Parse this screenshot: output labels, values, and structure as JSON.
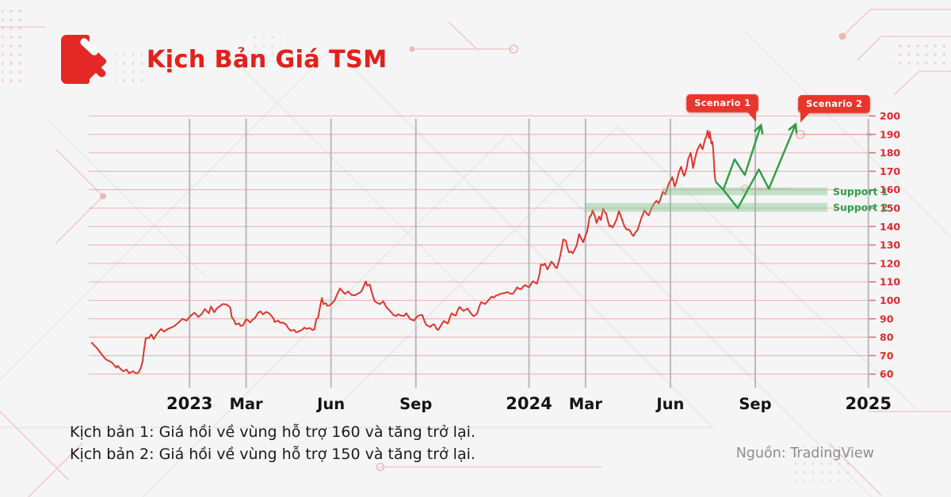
{
  "header": {
    "title": "Kịch Bản Giá TSM"
  },
  "footer": {
    "line1": "Kịch bản 1: Giá hồi về vùng hỗ trợ 160 và tăng trở lại.",
    "line2": "Kịch bản 2: Giá hồi về vùng hỗ trợ 150 và tăng trở lại.",
    "source": "Nguồn: TradingView"
  },
  "colors": {
    "accent_red": "#e2211c",
    "price_line": "#e0352e",
    "scenario_green": "#2f9e43",
    "support_label_green": "#2f9e4a",
    "support_band_green": "#7cc487",
    "grid_red": "#e25a52",
    "grid_gray": "#b5b3b3",
    "y_label_red": "#e0292b",
    "x_label_dark": "#141414",
    "badge_red": "#e8362b"
  },
  "chart_data": {
    "type": "line",
    "title": "Kịch Bản Giá TSM",
    "xlabel": "",
    "ylabel": "",
    "x_axis": {
      "unit": "months_since_jan_2023",
      "ticks": [
        {
          "label": "2023",
          "m": 0,
          "kind": "year"
        },
        {
          "label": "Mar",
          "m": 2,
          "kind": "month"
        },
        {
          "label": "Jun",
          "m": 5,
          "kind": "month"
        },
        {
          "label": "Sep",
          "m": 8,
          "kind": "month"
        },
        {
          "label": "2024",
          "m": 12,
          "kind": "year"
        },
        {
          "label": "Mar",
          "m": 14,
          "kind": "month"
        },
        {
          "label": "Jun",
          "m": 17,
          "kind": "month"
        },
        {
          "label": "Sep",
          "m": 20,
          "kind": "month"
        },
        {
          "label": "2025",
          "m": 24,
          "kind": "year"
        }
      ]
    },
    "y_axis": {
      "min": 60,
      "max": 200,
      "step": 10
    },
    "series": [
      {
        "name": "TSM price",
        "color": "#e0352e",
        "width": 2,
        "arrow": false,
        "points": [
          [
            -3.46,
            77
          ],
          [
            -3.27,
            74
          ],
          [
            -3.1,
            70.5
          ],
          [
            -2.96,
            68
          ],
          [
            -2.76,
            66.5
          ],
          [
            -2.59,
            63.5
          ],
          [
            -2.54,
            64.5
          ],
          [
            -2.42,
            62.5
          ],
          [
            -2.34,
            61.5
          ],
          [
            -2.23,
            62.5
          ],
          [
            -2.14,
            60.5
          ],
          [
            -2.0,
            61.5
          ],
          [
            -1.89,
            60.3
          ],
          [
            -1.8,
            61
          ],
          [
            -1.72,
            63.5
          ],
          [
            -1.66,
            67
          ],
          [
            -1.61,
            73
          ],
          [
            -1.55,
            79.5
          ],
          [
            -1.44,
            79.6
          ],
          [
            -1.35,
            81.5
          ],
          [
            -1.27,
            79
          ],
          [
            -1.15,
            82
          ],
          [
            -1.01,
            84.5
          ],
          [
            -0.9,
            83
          ],
          [
            -0.79,
            84.3
          ],
          [
            -0.68,
            85
          ],
          [
            -0.54,
            86
          ],
          [
            -0.39,
            88
          ],
          [
            -0.25,
            90
          ],
          [
            -0.11,
            89
          ],
          [
            0.03,
            91.5
          ],
          [
            0.17,
            93.3
          ],
          [
            0.31,
            91
          ],
          [
            0.42,
            92.5
          ],
          [
            0.54,
            95.3
          ],
          [
            0.68,
            93
          ],
          [
            0.76,
            96.7
          ],
          [
            0.87,
            93.5
          ],
          [
            0.96,
            95.6
          ],
          [
            1.13,
            97.5
          ],
          [
            1.18,
            98
          ],
          [
            1.32,
            97.7
          ],
          [
            1.44,
            96
          ],
          [
            1.49,
            91
          ],
          [
            1.58,
            89
          ],
          [
            1.63,
            86.9
          ],
          [
            1.75,
            87.5
          ],
          [
            1.8,
            86.1
          ],
          [
            1.89,
            86.5
          ],
          [
            2.0,
            89.7
          ],
          [
            2.08,
            89
          ],
          [
            2.14,
            88
          ],
          [
            2.23,
            89.5
          ],
          [
            2.31,
            90.3
          ],
          [
            2.42,
            93.2
          ],
          [
            2.51,
            94
          ],
          [
            2.59,
            92.4
          ],
          [
            2.7,
            93.7
          ],
          [
            2.79,
            93.2
          ],
          [
            2.87,
            92
          ],
          [
            2.96,
            90.3
          ],
          [
            3.01,
            88.2
          ],
          [
            3.13,
            89
          ],
          [
            3.21,
            87.8
          ],
          [
            3.3,
            88
          ],
          [
            3.41,
            86.9
          ],
          [
            3.49,
            84.8
          ],
          [
            3.58,
            83.5
          ],
          [
            3.69,
            84
          ],
          [
            3.77,
            82.6
          ],
          [
            3.86,
            83.2
          ],
          [
            3.97,
            83.9
          ],
          [
            4.06,
            85.2
          ],
          [
            4.14,
            84.5
          ],
          [
            4.25,
            85
          ],
          [
            4.34,
            83.9
          ],
          [
            4.42,
            84.3
          ],
          [
            4.48,
            89.9
          ],
          [
            4.54,
            90.3
          ],
          [
            4.62,
            97
          ],
          [
            4.68,
            101.3
          ],
          [
            4.73,
            98
          ],
          [
            4.82,
            98.5
          ],
          [
            4.87,
            97
          ],
          [
            4.96,
            97.3
          ],
          [
            5.04,
            98.5
          ],
          [
            5.13,
            100
          ],
          [
            5.21,
            103
          ],
          [
            5.32,
            106.5
          ],
          [
            5.41,
            104.8
          ],
          [
            5.49,
            103.5
          ],
          [
            5.61,
            104.8
          ],
          [
            5.72,
            103
          ],
          [
            5.83,
            102.7
          ],
          [
            5.94,
            103.5
          ],
          [
            6.06,
            104.5
          ],
          [
            6.14,
            107
          ],
          [
            6.23,
            110.3
          ],
          [
            6.28,
            108
          ],
          [
            6.37,
            108.6
          ],
          [
            6.45,
            104
          ],
          [
            6.54,
            99.6
          ],
          [
            6.65,
            98.5
          ],
          [
            6.73,
            98
          ],
          [
            6.85,
            99.5
          ],
          [
            6.93,
            97
          ],
          [
            7.01,
            95.4
          ],
          [
            7.13,
            93.5
          ],
          [
            7.21,
            92
          ],
          [
            7.3,
            91.5
          ],
          [
            7.38,
            92.5
          ],
          [
            7.46,
            91.8
          ],
          [
            7.58,
            91.5
          ],
          [
            7.66,
            93
          ],
          [
            7.75,
            91
          ],
          [
            7.8,
            89.8
          ],
          [
            7.89,
            89.3
          ],
          [
            7.94,
            89
          ],
          [
            8.03,
            91
          ],
          [
            8.08,
            91.5
          ],
          [
            8.17,
            92
          ],
          [
            8.23,
            92
          ],
          [
            8.31,
            88.5
          ],
          [
            8.37,
            86.7
          ],
          [
            8.45,
            86
          ],
          [
            8.51,
            85.6
          ],
          [
            8.59,
            86.8
          ],
          [
            8.65,
            87
          ],
          [
            8.73,
            84.6
          ],
          [
            8.79,
            83.9
          ],
          [
            8.87,
            86
          ],
          [
            8.99,
            88.8
          ],
          [
            9.07,
            88
          ],
          [
            9.13,
            87.4
          ],
          [
            9.21,
            91
          ],
          [
            9.27,
            93
          ],
          [
            9.35,
            92
          ],
          [
            9.41,
            91.7
          ],
          [
            9.49,
            95
          ],
          [
            9.55,
            96.4
          ],
          [
            9.63,
            95
          ],
          [
            9.69,
            94.3
          ],
          [
            9.77,
            95
          ],
          [
            9.83,
            95.6
          ],
          [
            9.92,
            93.5
          ],
          [
            10.03,
            91.4
          ],
          [
            10.11,
            92
          ],
          [
            10.17,
            93
          ],
          [
            10.25,
            97
          ],
          [
            10.31,
            99
          ],
          [
            10.39,
            98.5
          ],
          [
            10.45,
            98
          ],
          [
            10.56,
            100
          ],
          [
            10.68,
            102
          ],
          [
            10.76,
            101.5
          ],
          [
            10.82,
            102.5
          ],
          [
            10.9,
            102.8
          ],
          [
            10.96,
            103.3
          ],
          [
            11.07,
            103.8
          ],
          [
            11.15,
            104
          ],
          [
            11.24,
            104.5
          ],
          [
            11.35,
            103.5
          ],
          [
            11.44,
            103.7
          ],
          [
            11.52,
            105.5
          ],
          [
            11.58,
            107
          ],
          [
            11.66,
            106.2
          ],
          [
            11.72,
            106
          ],
          [
            11.8,
            107.5
          ],
          [
            11.86,
            108.3
          ],
          [
            11.94,
            107.5
          ],
          [
            12.0,
            107
          ],
          [
            12.08,
            109
          ],
          [
            12.14,
            110.4
          ],
          [
            12.23,
            109.5
          ],
          [
            12.28,
            109
          ],
          [
            12.37,
            114
          ],
          [
            12.42,
            119.5
          ],
          [
            12.51,
            119
          ],
          [
            12.56,
            120
          ],
          [
            12.65,
            116.8
          ],
          [
            12.7,
            118
          ],
          [
            12.79,
            121
          ],
          [
            12.87,
            119.7
          ],
          [
            12.93,
            118
          ],
          [
            12.99,
            117.5
          ],
          [
            13.07,
            122
          ],
          [
            13.13,
            126
          ],
          [
            13.21,
            133
          ],
          [
            13.3,
            132.4
          ],
          [
            13.35,
            129
          ],
          [
            13.41,
            126
          ],
          [
            13.49,
            126.5
          ],
          [
            13.55,
            125.5
          ],
          [
            13.63,
            128
          ],
          [
            13.69,
            130
          ],
          [
            13.77,
            136
          ],
          [
            13.83,
            134
          ],
          [
            13.92,
            131.5
          ],
          [
            13.97,
            134
          ],
          [
            14.06,
            137.5
          ],
          [
            14.14,
            145.3
          ],
          [
            14.2,
            146
          ],
          [
            14.25,
            148.9
          ],
          [
            14.34,
            145
          ],
          [
            14.39,
            142
          ],
          [
            14.48,
            145.5
          ],
          [
            14.54,
            143.5
          ],
          [
            14.62,
            149.7
          ],
          [
            14.68,
            148
          ],
          [
            14.73,
            147
          ],
          [
            14.79,
            143
          ],
          [
            14.85,
            140
          ],
          [
            14.9,
            140.5
          ],
          [
            14.96,
            139.5
          ],
          [
            15.04,
            142
          ],
          [
            15.1,
            144
          ],
          [
            15.18,
            148.5
          ],
          [
            15.24,
            146
          ],
          [
            15.32,
            142.5
          ],
          [
            15.38,
            140
          ],
          [
            15.46,
            138.3
          ],
          [
            15.52,
            138.5
          ],
          [
            15.58,
            137.5
          ],
          [
            15.63,
            136
          ],
          [
            15.69,
            134.9
          ],
          [
            15.75,
            136.5
          ],
          [
            15.83,
            138
          ],
          [
            15.92,
            142
          ],
          [
            15.97,
            144.7
          ],
          [
            16.03,
            146.5
          ],
          [
            16.08,
            148.9
          ],
          [
            16.17,
            147
          ],
          [
            16.23,
            146
          ],
          [
            16.31,
            149
          ],
          [
            16.37,
            151
          ],
          [
            16.45,
            153
          ],
          [
            16.51,
            154
          ],
          [
            16.59,
            152.5
          ],
          [
            16.65,
            155
          ],
          [
            16.73,
            158.9
          ],
          [
            16.82,
            157.5
          ],
          [
            16.87,
            160
          ],
          [
            16.96,
            163.9
          ],
          [
            17.01,
            165
          ],
          [
            17.07,
            166.8
          ],
          [
            17.15,
            161.7
          ],
          [
            17.21,
            164
          ],
          [
            17.3,
            169.5
          ],
          [
            17.38,
            172.5
          ],
          [
            17.44,
            169
          ],
          [
            17.49,
            167.5
          ],
          [
            17.58,
            172
          ],
          [
            17.63,
            176.8
          ],
          [
            17.72,
            180
          ],
          [
            17.77,
            175
          ],
          [
            17.8,
            171.7
          ],
          [
            17.86,
            176
          ],
          [
            17.94,
            181.2
          ],
          [
            18.0,
            183
          ],
          [
            18.06,
            184.7
          ],
          [
            18.11,
            182.5
          ],
          [
            18.14,
            182
          ],
          [
            18.23,
            187.6
          ],
          [
            18.28,
            189
          ],
          [
            18.31,
            192
          ],
          [
            18.34,
            190
          ],
          [
            18.37,
            188
          ],
          [
            18.39,
            191.5
          ],
          [
            18.45,
            185
          ],
          [
            18.48,
            186
          ],
          [
            18.51,
            183
          ],
          [
            18.54,
            175
          ],
          [
            18.56,
            169
          ],
          [
            18.59,
            165
          ],
          [
            18.62,
            164
          ]
        ]
      },
      {
        "name": "Scenario 1 path",
        "color": "#2f9e43",
        "width": 2.4,
        "arrow": true,
        "points": [
          [
            18.62,
            164
          ],
          [
            18.87,
            160
          ],
          [
            19.27,
            176.5
          ],
          [
            19.63,
            168
          ],
          [
            20.18,
            194
          ]
        ]
      },
      {
        "name": "Scenario 2 path",
        "color": "#2f9e43",
        "width": 2.4,
        "arrow": true,
        "points": [
          [
            18.87,
            160
          ],
          [
            19.38,
            150
          ],
          [
            20.13,
            171
          ],
          [
            20.48,
            160.5
          ],
          [
            21.4,
            194.5
          ]
        ]
      }
    ],
    "support_zones": [
      {
        "label": "Support 1",
        "price_low": 157.0,
        "price_high": 161.2,
        "m_start": 16.72,
        "m_end": 22.55
      },
      {
        "label": "Support 2",
        "price_low": 148.0,
        "price_high": 152.8,
        "m_start": 13.97,
        "m_end": 22.55
      }
    ],
    "annotations": [
      {
        "label": "Scenario 1",
        "tip_m": 20.18,
        "tip_price": 195,
        "side": "left"
      },
      {
        "label": "Scenario 2",
        "tip_m": 21.4,
        "tip_price": 195.5,
        "side": "right"
      }
    ]
  }
}
